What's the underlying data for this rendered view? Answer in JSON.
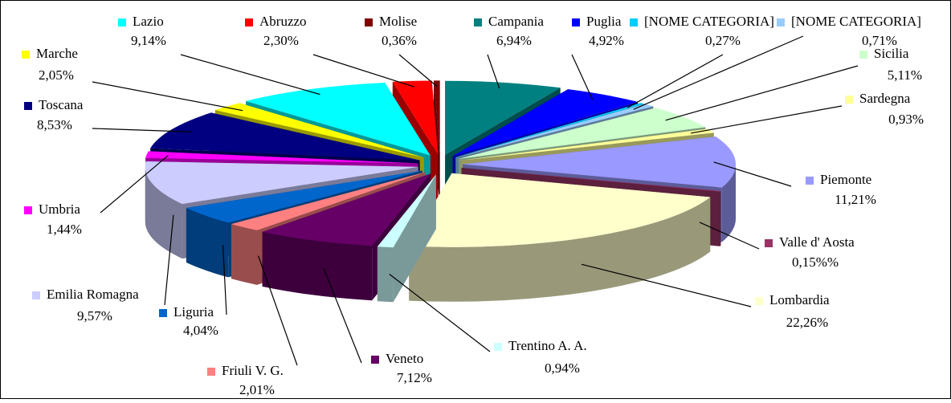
{
  "chart_data": {
    "type": "pie3d",
    "categories": [
      "Campania",
      "Puglia",
      "[NOME CATEGORIA]",
      "[NOME CATEGORIA]",
      "Sicilia",
      "Sardegna",
      "Piemonte",
      "Valle d' Aosta",
      "Lombardia",
      "Trentino A. A.",
      "Veneto",
      "Friuli V. G.",
      "Liguria",
      "Emilia Romagna",
      "Umbria",
      "Toscana",
      "Marche",
      "Lazio",
      "Abruzzo",
      "Molise"
    ],
    "values": [
      6.94,
      4.92,
      0.27,
      0.71,
      5.11,
      0.93,
      11.21,
      0.15,
      22.26,
      0.94,
      7.12,
      2.01,
      4.04,
      9.57,
      1.44,
      8.53,
      2.05,
      9.14,
      2.3,
      0.36
    ],
    "value_labels": [
      "6,94%",
      "4,92%",
      "0,27%",
      "0,71%",
      "5,11%",
      "0,93%",
      "11,21%",
      "0,15%%",
      "22,26%",
      "0,94%",
      "7,12%",
      "2,01%",
      "4,04%",
      "9,57%",
      "1,44%",
      "8,53%",
      "2,05%",
      "9,14%",
      "2,30%",
      "0,36%"
    ],
    "colors": [
      "#008080",
      "#0000ff",
      "#00ccff",
      "#99ccff",
      "#ccffcc",
      "#ffff99",
      "#9999ff",
      "#993366",
      "#ffffcc",
      "#ccffff",
      "#660066",
      "#ff8080",
      "#0066cc",
      "#ccccff",
      "#ff00ff",
      "#000080",
      "#ffff00",
      "#00ffff",
      "#ff0000",
      "#800000"
    ]
  }
}
